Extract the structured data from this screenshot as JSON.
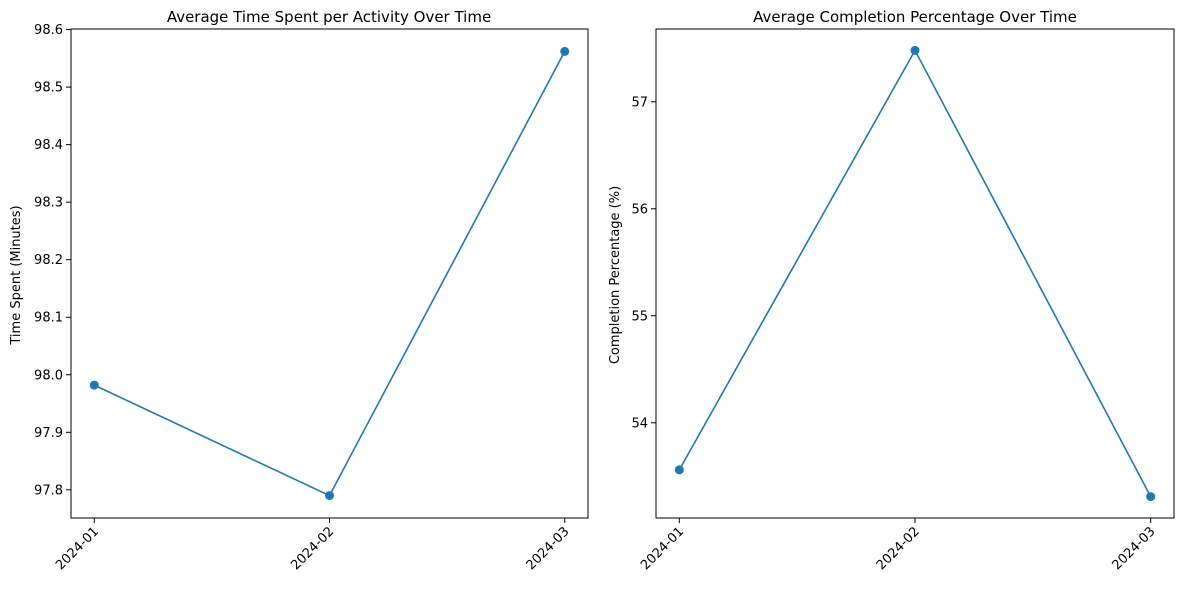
{
  "colors": {
    "series": "#1f77b4"
  },
  "chart_data": [
    {
      "type": "line",
      "title": "Average Time Spent per Activity Over Time",
      "xlabel": "",
      "ylabel": "Time Spent (Minutes)",
      "categories": [
        "2024-01",
        "2024-02",
        "2024-03"
      ],
      "series": [
        {
          "values": [
            97.982,
            97.79,
            98.562
          ]
        }
      ],
      "ylim": [
        97.751,
        98.601
      ],
      "yticks": [
        97.8,
        97.9,
        98.0,
        98.1,
        98.2,
        98.3,
        98.4,
        98.5,
        98.6
      ],
      "ytick_labels": [
        "97.8",
        "97.9",
        "98.0",
        "98.1",
        "98.2",
        "98.3",
        "98.4",
        "98.5",
        "98.6"
      ],
      "grid": false,
      "marker": "circle"
    },
    {
      "type": "line",
      "title": "Average Completion Percentage Over Time",
      "xlabel": "",
      "ylabel": "Completion Percentage (%)",
      "categories": [
        "2024-01",
        "2024-02",
        "2024-03"
      ],
      "series": [
        {
          "values": [
            53.56,
            57.48,
            53.31
          ]
        }
      ],
      "ylim": [
        53.11,
        57.68
      ],
      "yticks": [
        54,
        55,
        56,
        57
      ],
      "ytick_labels": [
        "54",
        "55",
        "56",
        "57"
      ],
      "grid": false,
      "marker": "circle"
    }
  ]
}
